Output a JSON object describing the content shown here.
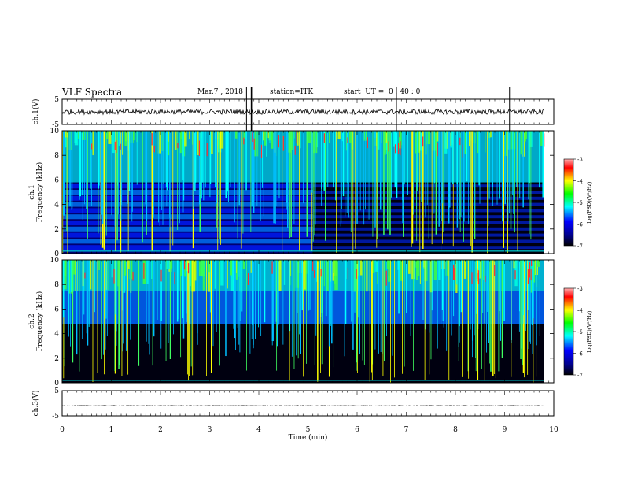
{
  "header": {
    "title": "VLF Spectra",
    "date": "Mar.7 , 2018",
    "station": "station=ITK",
    "start_time": "start  UT =  0 : 40 : 0"
  },
  "chart_data": [
    {
      "type": "line",
      "ylabel": "ch.1(V)",
      "ylim": [
        -5,
        5
      ],
      "yticks": [
        "5",
        "-5"
      ],
      "xlim": [
        0,
        10
      ],
      "baseline": 0,
      "noise_amplitude": 1,
      "spikes_x": [
        3.85,
        3.75,
        6.8,
        9.1
      ]
    },
    {
      "type": "heatmap",
      "ylabel": "ch.1\nFrequency  (kHz)",
      "ylim": [
        0,
        10
      ],
      "yticks": [
        "0",
        "2",
        "4",
        "6",
        "8",
        "10"
      ],
      "xlim": [
        0,
        10
      ],
      "data_end_x": 9.8,
      "colorbar": {
        "label": "log(PSD)(V²/Hz)",
        "range": [
          -7,
          -3
        ],
        "ticks": [
          "-3",
          "-4",
          "-5",
          "-6",
          "-7"
        ]
      },
      "notes": "horizontal bands at ~0.5 kHz spacing below 6 kHz; background darkens after 5 min"
    },
    {
      "type": "heatmap",
      "ylabel": "ch.2\nFrequency  (kHz)",
      "ylim": [
        0,
        10
      ],
      "yticks": [
        "0",
        "2",
        "4",
        "6",
        "8",
        "10"
      ],
      "xlim": [
        0,
        10
      ],
      "data_end_x": 9.8,
      "colorbar": {
        "label": "log(PSD)(V²/Hz)",
        "range": [
          -7,
          -3
        ],
        "ticks": [
          "-3",
          "-4",
          "-5",
          "-6",
          "-7"
        ]
      }
    },
    {
      "type": "line",
      "ylabel": "ch.3(V)",
      "ylim": [
        -5,
        5
      ],
      "yticks": [
        "5",
        "-5"
      ],
      "xlim": [
        0,
        10
      ],
      "baseline": -1,
      "noise_amplitude": 0.1,
      "xlabel": "Time  (min)",
      "xticks": [
        "0",
        "1",
        "2",
        "3",
        "4",
        "5",
        "6",
        "7",
        "8",
        "9",
        "10"
      ]
    }
  ],
  "palette": {
    "jet_stops": [
      "#000000",
      "#00008b",
      "#0000ff",
      "#00ffff",
      "#00ff00",
      "#ffff00",
      "#ff0000",
      "#ff9999"
    ]
  }
}
